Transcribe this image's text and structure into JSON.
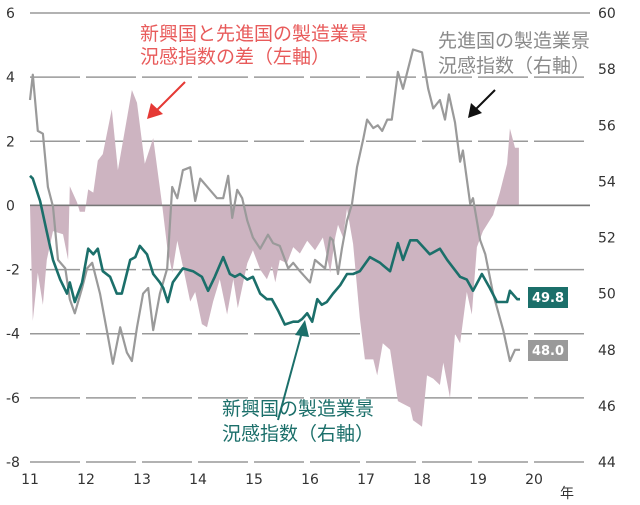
{
  "chart_data": {
    "type": "line",
    "title": "",
    "xlabel": "年",
    "x_ticks": [
      "11",
      "12",
      "13",
      "14",
      "15",
      "16",
      "17",
      "18",
      "19",
      "20"
    ],
    "xlim": [
      11,
      21
    ],
    "left_axis": {
      "ylim": [
        -8,
        6
      ],
      "ticks": [
        "6",
        "4",
        "2",
        "0",
        "-2",
        "-4",
        "-6",
        "-8"
      ]
    },
    "right_axis": {
      "ylim": [
        44,
        60
      ],
      "ticks": [
        "60",
        "58",
        "56",
        "54",
        "52",
        "50",
        "48",
        "46",
        "44"
      ]
    },
    "grid": true,
    "colors": {
      "diff": "#cdb4c1",
      "advanced": "#9a9a9a",
      "emerging": "#1b6f6a",
      "diff_annotation": "#e85b5b",
      "advanced_arrow": "#111111"
    },
    "series": [
      {
        "key": "diff",
        "kind": "area",
        "axis": "left",
        "name": "新興国と先進国の製造業景況感指数の差（左軸）",
        "points": [
          [
            11.0,
            0
          ],
          [
            11.05,
            -3.6
          ],
          [
            11.14,
            -2.1
          ],
          [
            11.23,
            -3.1
          ],
          [
            11.3,
            -1.7
          ],
          [
            11.41,
            -0.8
          ],
          [
            11.59,
            -0.9
          ],
          [
            11.68,
            -1.7
          ],
          [
            11.71,
            0.6
          ],
          [
            11.84,
            0.1
          ],
          [
            11.89,
            -0.2
          ],
          [
            11.98,
            -0.2
          ],
          [
            12.04,
            0.5
          ],
          [
            12.13,
            0.4
          ],
          [
            12.21,
            1.4
          ],
          [
            12.3,
            1.6
          ],
          [
            12.46,
            3.0
          ],
          [
            12.57,
            1.1
          ],
          [
            12.82,
            3.6
          ],
          [
            12.91,
            3.2
          ],
          [
            13.05,
            1.3
          ],
          [
            13.2,
            2.1
          ],
          [
            13.36,
            0
          ],
          [
            13.45,
            -1.3
          ],
          [
            13.54,
            -2.1
          ],
          [
            13.63,
            -1.1
          ],
          [
            13.73,
            -1.9
          ],
          [
            13.86,
            -3.0
          ],
          [
            13.95,
            -2.7
          ],
          [
            14.07,
            -3.7
          ],
          [
            14.16,
            -3.8
          ],
          [
            14.27,
            -3.0
          ],
          [
            14.39,
            -2.3
          ],
          [
            14.52,
            -3.4
          ],
          [
            14.63,
            -2.3
          ],
          [
            14.71,
            -3.2
          ],
          [
            14.88,
            -1.8
          ],
          [
            14.98,
            -1.4
          ],
          [
            15.11,
            -2.0
          ],
          [
            15.23,
            -2.3
          ],
          [
            15.32,
            -1.9
          ],
          [
            15.38,
            -2.4
          ],
          [
            15.46,
            -1.7
          ],
          [
            15.59,
            -1.8
          ],
          [
            15.7,
            -1.3
          ],
          [
            15.82,
            -1.5
          ],
          [
            15.95,
            -1.1
          ],
          [
            16.09,
            -1.4
          ],
          [
            16.23,
            -1.0
          ],
          [
            16.36,
            -2.1
          ],
          [
            16.45,
            -1.0
          ],
          [
            16.5,
            -0.6
          ],
          [
            16.59,
            -1.0
          ],
          [
            16.66,
            -0.1
          ],
          [
            16.77,
            -1.2
          ],
          [
            16.89,
            -3.5
          ],
          [
            16.98,
            -4.8
          ],
          [
            17.13,
            -4.8
          ],
          [
            17.2,
            -5.3
          ],
          [
            17.3,
            -4.3
          ],
          [
            17.43,
            -4.5
          ],
          [
            17.57,
            -6.1
          ],
          [
            17.79,
            -6.3
          ],
          [
            17.84,
            -6.7
          ],
          [
            18.0,
            -6.9
          ],
          [
            18.09,
            -5.3
          ],
          [
            18.2,
            -5.4
          ],
          [
            18.32,
            -5.6
          ],
          [
            18.38,
            -4.9
          ],
          [
            18.5,
            -6.0
          ],
          [
            18.59,
            -4.0
          ],
          [
            18.68,
            -4.3
          ],
          [
            18.8,
            -2.7
          ],
          [
            18.89,
            -3.4
          ],
          [
            18.98,
            -1.3
          ],
          [
            19.09,
            -0.8
          ],
          [
            19.27,
            -0.3
          ],
          [
            19.39,
            0.4
          ],
          [
            19.52,
            1.3
          ],
          [
            19.57,
            2.4
          ],
          [
            19.66,
            1.8
          ],
          [
            19.73,
            1.8
          ]
        ]
      },
      {
        "key": "advanced",
        "kind": "line",
        "axis": "right",
        "name": "先進国の製造業景況感指数（右軸）",
        "end_label": "48.0",
        "points": [
          [
            11.0,
            56.9
          ],
          [
            11.05,
            57.8
          ],
          [
            11.14,
            55.8
          ],
          [
            11.23,
            55.7
          ],
          [
            11.32,
            53.8
          ],
          [
            11.41,
            53.1
          ],
          [
            11.5,
            51.2
          ],
          [
            11.63,
            50.9
          ],
          [
            11.71,
            49.8
          ],
          [
            11.8,
            49.3
          ],
          [
            11.93,
            50.2
          ],
          [
            12.02,
            50.9
          ],
          [
            12.11,
            51.1
          ],
          [
            12.25,
            50.0
          ],
          [
            12.38,
            48.6
          ],
          [
            12.48,
            47.5
          ],
          [
            12.61,
            48.8
          ],
          [
            12.73,
            47.9
          ],
          [
            12.82,
            47.6
          ],
          [
            12.91,
            48.8
          ],
          [
            13.02,
            50.0
          ],
          [
            13.11,
            50.2
          ],
          [
            13.2,
            48.7
          ],
          [
            13.32,
            50.0
          ],
          [
            13.45,
            50.9
          ],
          [
            13.54,
            53.8
          ],
          [
            13.63,
            53.4
          ],
          [
            13.73,
            54.4
          ],
          [
            13.86,
            54.5
          ],
          [
            13.95,
            53.3
          ],
          [
            14.04,
            54.1
          ],
          [
            14.21,
            53.7
          ],
          [
            14.34,
            53.4
          ],
          [
            14.45,
            53.4
          ],
          [
            14.54,
            54.2
          ],
          [
            14.61,
            52.7
          ],
          [
            14.7,
            53.7
          ],
          [
            14.79,
            53.4
          ],
          [
            14.88,
            52.6
          ],
          [
            14.98,
            52.0
          ],
          [
            15.11,
            51.6
          ],
          [
            15.25,
            52.1
          ],
          [
            15.34,
            51.8
          ],
          [
            15.46,
            51.7
          ],
          [
            15.61,
            50.9
          ],
          [
            15.7,
            51.1
          ],
          [
            15.82,
            50.8
          ],
          [
            16.0,
            50.4
          ],
          [
            16.09,
            51.2
          ],
          [
            16.27,
            50.9
          ],
          [
            16.36,
            52.0
          ],
          [
            16.41,
            51.9
          ],
          [
            16.5,
            50.7
          ],
          [
            16.57,
            51.6
          ],
          [
            16.66,
            52.6
          ],
          [
            16.75,
            53.2
          ],
          [
            16.84,
            54.5
          ],
          [
            16.95,
            55.5
          ],
          [
            17.02,
            56.2
          ],
          [
            17.13,
            55.9
          ],
          [
            17.21,
            56.0
          ],
          [
            17.29,
            55.8
          ],
          [
            17.38,
            56.2
          ],
          [
            17.46,
            56.2
          ],
          [
            17.57,
            57.9
          ],
          [
            17.66,
            57.3
          ],
          [
            17.84,
            58.7
          ],
          [
            18.0,
            58.6
          ],
          [
            18.11,
            57.3
          ],
          [
            18.2,
            56.6
          ],
          [
            18.32,
            56.9
          ],
          [
            18.41,
            56.2
          ],
          [
            18.48,
            57.1
          ],
          [
            18.59,
            56.1
          ],
          [
            18.68,
            54.7
          ],
          [
            18.73,
            55.1
          ],
          [
            18.86,
            53.2
          ],
          [
            18.91,
            53.4
          ],
          [
            19.04,
            51.9
          ],
          [
            19.13,
            51.4
          ],
          [
            19.27,
            50.0
          ],
          [
            19.45,
            48.7
          ],
          [
            19.57,
            47.6
          ],
          [
            19.66,
            48.0
          ],
          [
            19.75,
            48.0
          ]
        ]
      },
      {
        "key": "emerging",
        "kind": "line",
        "axis": "right",
        "name": "新興国の製造業景況感指数（右軸）",
        "end_label": "49.8",
        "points": [
          [
            11.0,
            54.2
          ],
          [
            11.05,
            54.1
          ],
          [
            11.18,
            53.3
          ],
          [
            11.3,
            52.2
          ],
          [
            11.41,
            51.2
          ],
          [
            11.54,
            50.5
          ],
          [
            11.66,
            50.0
          ],
          [
            11.71,
            50.4
          ],
          [
            11.8,
            49.7
          ],
          [
            11.93,
            50.4
          ],
          [
            12.04,
            51.6
          ],
          [
            12.13,
            51.4
          ],
          [
            12.21,
            51.6
          ],
          [
            12.3,
            50.8
          ],
          [
            12.43,
            50.6
          ],
          [
            12.55,
            50.0
          ],
          [
            12.64,
            50.0
          ],
          [
            12.79,
            51.2
          ],
          [
            12.88,
            51.3
          ],
          [
            12.96,
            51.7
          ],
          [
            13.09,
            51.4
          ],
          [
            13.2,
            50.7
          ],
          [
            13.32,
            50.4
          ],
          [
            13.38,
            50.2
          ],
          [
            13.46,
            49.7
          ],
          [
            13.55,
            50.4
          ],
          [
            13.73,
            50.9
          ],
          [
            13.91,
            50.8
          ],
          [
            14.07,
            50.6
          ],
          [
            14.18,
            50.1
          ],
          [
            14.3,
            50.6
          ],
          [
            14.45,
            51.3
          ],
          [
            14.57,
            50.7
          ],
          [
            14.66,
            50.6
          ],
          [
            14.75,
            50.7
          ],
          [
            14.88,
            50.5
          ],
          [
            14.98,
            50.6
          ],
          [
            15.11,
            50.0
          ],
          [
            15.23,
            49.8
          ],
          [
            15.32,
            49.8
          ],
          [
            15.43,
            49.4
          ],
          [
            15.55,
            48.9
          ],
          [
            15.7,
            49.0
          ],
          [
            15.79,
            49.0
          ],
          [
            15.86,
            49.1
          ],
          [
            15.95,
            49.3
          ],
          [
            16.04,
            49.0
          ],
          [
            16.13,
            49.8
          ],
          [
            16.21,
            49.6
          ],
          [
            16.3,
            49.7
          ],
          [
            16.41,
            50.0
          ],
          [
            16.54,
            50.3
          ],
          [
            16.66,
            50.7
          ],
          [
            16.77,
            50.7
          ],
          [
            16.89,
            50.8
          ],
          [
            17.07,
            51.3
          ],
          [
            17.25,
            51.1
          ],
          [
            17.43,
            50.8
          ],
          [
            17.57,
            51.8
          ],
          [
            17.66,
            51.2
          ],
          [
            17.79,
            51.9
          ],
          [
            17.91,
            51.9
          ],
          [
            18.14,
            51.4
          ],
          [
            18.32,
            51.6
          ],
          [
            18.45,
            51.2
          ],
          [
            18.68,
            50.6
          ],
          [
            18.8,
            50.5
          ],
          [
            18.91,
            50.1
          ],
          [
            19.07,
            50.7
          ],
          [
            19.21,
            50.2
          ],
          [
            19.34,
            49.7
          ],
          [
            19.52,
            49.7
          ],
          [
            19.57,
            50.1
          ],
          [
            19.7,
            49.8
          ],
          [
            19.75,
            49.8
          ]
        ]
      }
    ],
    "annotations": {
      "diff": [
        "新興国と先進国の製造業景",
        "況感指数の差（左軸）"
      ],
      "advanced": [
        "先進国の製造業景",
        "況感指数（右軸）"
      ],
      "emerging": [
        "新興国の製造業景",
        "況感指数（右軸）"
      ]
    }
  }
}
